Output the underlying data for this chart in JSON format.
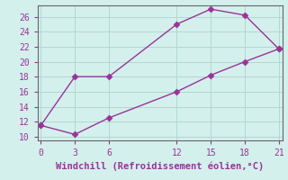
{
  "x": [
    0,
    3,
    6,
    12,
    15,
    18,
    21
  ],
  "y_upper": [
    11.5,
    18.0,
    18.0,
    25.0,
    27.0,
    26.2,
    21.7
  ],
  "y_lower": [
    11.5,
    10.3,
    12.5,
    16.0,
    18.2,
    20.0,
    21.7
  ],
  "line_color": "#993399",
  "marker_color": "#993399",
  "background_color": "#d4f0ec",
  "grid_color": "#b0d8d0",
  "xlabel": "Windchill (Refroidissement éolien,°C)",
  "xlabel_color": "#993399",
  "ylim": [
    9.5,
    27.5
  ],
  "xlim": [
    -0.3,
    21.3
  ],
  "yticks": [
    10,
    12,
    14,
    16,
    18,
    20,
    22,
    24,
    26
  ],
  "xticks": [
    0,
    3,
    6,
    12,
    15,
    18,
    21
  ],
  "tick_color": "#993399",
  "font_family": "monospace",
  "tick_fontsize": 7,
  "xlabel_fontsize": 7.5,
  "marker_size": 3.5,
  "linewidth": 1.0
}
